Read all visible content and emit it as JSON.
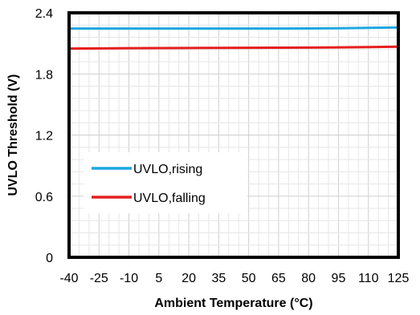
{
  "chart_data": {
    "type": "line",
    "xlabel": "Ambient Temperature (°C)",
    "ylabel": "UVLO Threshold (V)",
    "xlim": [
      -40,
      125
    ],
    "ylim": [
      0,
      2.4
    ],
    "x_ticks": [
      "-40",
      "-25",
      "-10",
      "5",
      "20",
      "35",
      "50",
      "65",
      "80",
      "95",
      "110",
      "125"
    ],
    "y_ticks": [
      "0",
      "0.6",
      "1.2",
      "1.8",
      "2.4"
    ],
    "grid": true,
    "legend_position": "left",
    "series": [
      {
        "name": "UVLO,rising",
        "color": "#1ea7e1",
        "x": [
          -40,
          -25,
          -10,
          5,
          20,
          35,
          50,
          65,
          80,
          95,
          110,
          125
        ],
        "y": [
          2.246,
          2.246,
          2.246,
          2.246,
          2.246,
          2.246,
          2.246,
          2.246,
          2.247,
          2.249,
          2.252,
          2.256
        ]
      },
      {
        "name": "UVLO,falling",
        "color": "#e61e1e",
        "x": [
          -40,
          -25,
          -10,
          5,
          20,
          35,
          50,
          65,
          80,
          95,
          110,
          125
        ],
        "y": [
          2.049,
          2.051,
          2.053,
          2.054,
          2.055,
          2.056,
          2.057,
          2.058,
          2.059,
          2.061,
          2.064,
          2.068
        ]
      }
    ]
  }
}
